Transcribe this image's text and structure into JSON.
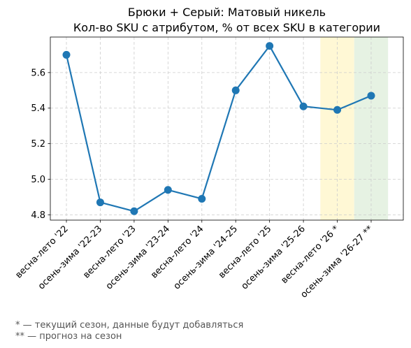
{
  "chart_data": {
    "type": "line",
    "title": "Брюки + Серый: Матовый никель",
    "subtitle": "Кол-во SKU с атрибутом, % от всех SKU в категории",
    "categories": [
      "весна-лето '22",
      "осень-зима '22-23",
      "весна-лето '23",
      "осень-зима '23-24",
      "весна-лето '24",
      "осень-зима '24-25",
      "весна-лето '25",
      "осень-зима '25-26",
      "весна-лето '26 *",
      "осень-зима '26-27 **"
    ],
    "series": [
      {
        "values": [
          5.7,
          4.87,
          4.82,
          4.94,
          4.89,
          5.5,
          5.75,
          5.41,
          5.39,
          5.47
        ]
      }
    ],
    "ytick_labels": [
      "4.8",
      "5.0",
      "5.2",
      "5.4",
      "5.6"
    ],
    "ylim": [
      4.77,
      5.8
    ],
    "grid": true,
    "line_color": "#1f77b4",
    "highlights": [
      {
        "index": 8,
        "meaning": "current-season",
        "color": "#fff8d5"
      },
      {
        "index": 9,
        "meaning": "forecast",
        "color": "#e6f2e3"
      }
    ]
  },
  "footnotes": [
    "* — текущий сезон, данные будут добавляться",
    "** — прогноз на сезон"
  ]
}
